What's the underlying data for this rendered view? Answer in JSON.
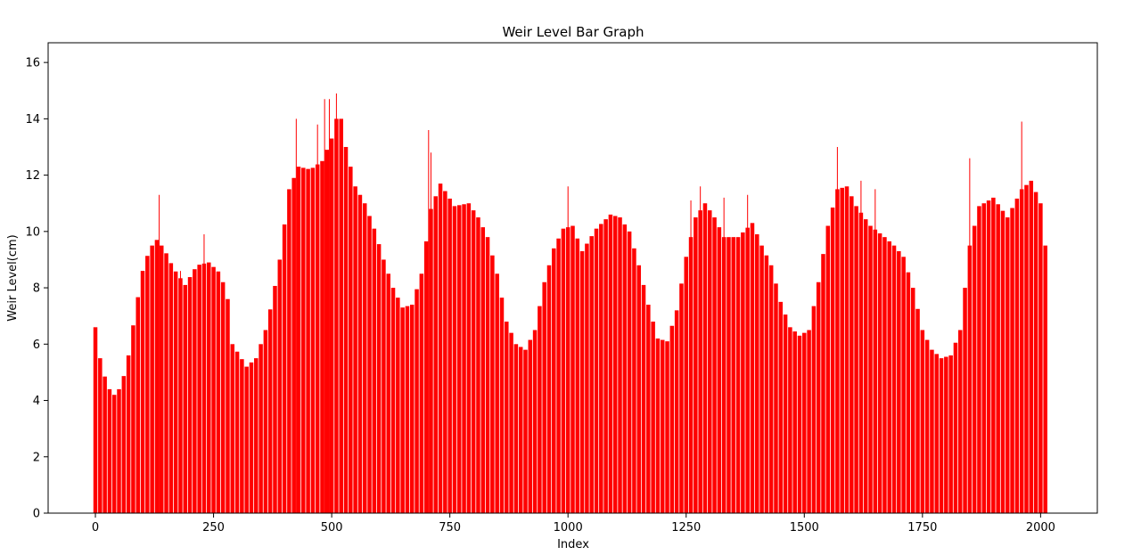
{
  "chart_data": {
    "type": "bar",
    "title": "Weir Level Bar Graph",
    "xlabel": "Index",
    "ylabel": "Weir Level(cm)",
    "xlim": [
      -100,
      2120
    ],
    "ylim": [
      0,
      16.7
    ],
    "xticks": [
      0,
      250,
      500,
      750,
      1000,
      1250,
      1500,
      1750,
      2000
    ],
    "yticks": [
      0,
      2,
      4,
      6,
      8,
      10,
      12,
      14,
      16
    ],
    "grid": false,
    "bar_color": "#ff0000",
    "bar_spacing": 10,
    "profile_x": [
      0,
      5,
      15,
      25,
      40,
      55,
      70,
      85,
      100,
      115,
      130,
      145,
      165,
      190,
      215,
      240,
      265,
      280,
      290,
      305,
      320,
      340,
      360,
      375,
      390,
      410,
      430,
      455,
      480,
      505,
      515,
      530,
      550,
      570,
      590,
      610,
      630,
      650,
      670,
      690,
      710,
      730,
      760,
      790,
      810,
      830,
      850,
      870,
      890,
      910,
      930,
      950,
      970,
      990,
      1010,
      1030,
      1060,
      1090,
      1110,
      1130,
      1150,
      1170,
      1190,
      1210,
      1230,
      1250,
      1270,
      1290,
      1310,
      1330,
      1360,
      1390,
      1410,
      1430,
      1450,
      1470,
      1490,
      1510,
      1530,
      1550,
      1570,
      1590,
      1610,
      1640,
      1670,
      1690,
      1710,
      1730,
      1750,
      1770,
      1790,
      1810,
      1830,
      1850,
      1870,
      1900,
      1930,
      1960,
      1980,
      2000,
      2010,
      2018
    ],
    "profile_y": [
      6.6,
      5.8,
      5.2,
      4.5,
      4.2,
      4.5,
      5.6,
      7.2,
      8.6,
      9.4,
      9.7,
      9.4,
      8.7,
      8.1,
      8.8,
      8.9,
      8.5,
      7.6,
      6.0,
      5.6,
      5.2,
      5.5,
      6.5,
      7.6,
      9.0,
      11.5,
      12.3,
      12.2,
      12.5,
      13.5,
      14.5,
      13.0,
      11.6,
      11.0,
      10.1,
      9.0,
      8.0,
      7.3,
      7.4,
      8.5,
      10.8,
      11.7,
      10.9,
      11.0,
      10.5,
      9.8,
      8.5,
      6.8,
      6.0,
      5.8,
      6.5,
      8.2,
      9.4,
      10.1,
      10.2,
      9.3,
      10.1,
      10.6,
      10.5,
      10.0,
      8.8,
      7.4,
      6.2,
      6.1,
      7.2,
      9.1,
      10.5,
      11.0,
      10.5,
      9.8,
      9.8,
      10.3,
      9.5,
      8.8,
      7.5,
      6.6,
      6.3,
      6.5,
      8.2,
      10.2,
      11.5,
      11.6,
      10.9,
      10.2,
      9.8,
      9.5,
      9.1,
      8.0,
      6.5,
      5.8,
      5.5,
      5.6,
      6.5,
      9.5,
      10.9,
      11.2,
      10.5,
      11.5,
      11.8,
      11.0,
      9.5,
      7.4
    ],
    "spikes": [
      [
        135,
        11.3
      ],
      [
        180,
        8.6
      ],
      [
        230,
        9.9
      ],
      [
        425,
        14.0
      ],
      [
        470,
        13.8
      ],
      [
        485,
        14.7
      ],
      [
        495,
        14.7
      ],
      [
        510,
        14.9
      ],
      [
        705,
        13.6
      ],
      [
        710,
        12.8
      ],
      [
        1000,
        11.6
      ],
      [
        1260,
        11.1
      ],
      [
        1280,
        11.6
      ],
      [
        1330,
        11.2
      ],
      [
        1380,
        11.3
      ],
      [
        1570,
        13.0
      ],
      [
        1620,
        11.8
      ],
      [
        1650,
        11.5
      ],
      [
        1850,
        12.6
      ],
      [
        1960,
        13.9
      ]
    ]
  }
}
